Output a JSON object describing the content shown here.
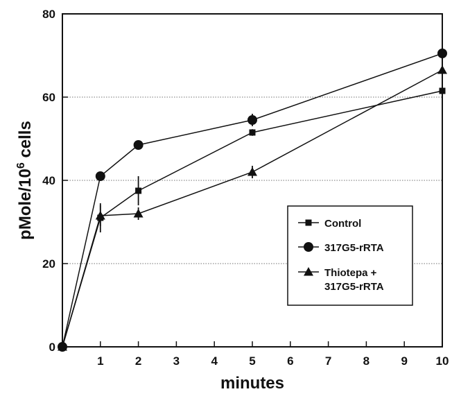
{
  "chart_data": {
    "type": "line",
    "xlabel": "minutes",
    "ylabel": "pMole/10",
    "ylabel_exponent": "6",
    "ylabel_suffix": " cells",
    "xlim": [
      0,
      10
    ],
    "ylim": [
      0,
      80
    ],
    "xticks": [
      1,
      2,
      3,
      4,
      5,
      6,
      7,
      8,
      9,
      10
    ],
    "yticks": [
      0,
      20,
      40,
      60,
      80
    ],
    "grid": {
      "horizontal": [
        20,
        40,
        60
      ],
      "style": "dotted"
    },
    "legend_position": "lower-right",
    "series": [
      {
        "name": "Control",
        "marker": "square",
        "x": [
          0,
          1,
          2,
          5,
          10
        ],
        "y": [
          0,
          31,
          37.5,
          51.5,
          61.5
        ],
        "err": [
          0,
          3.5,
          3.5,
          0.8,
          0.8
        ]
      },
      {
        "name": "317G5-rRTA",
        "marker": "circle",
        "x": [
          0,
          1,
          2,
          5,
          10
        ],
        "y": [
          0,
          41,
          48.5,
          54.5,
          70.5
        ],
        "err": [
          0,
          0.8,
          0.8,
          1.5,
          1.2
        ]
      },
      {
        "name": "Thiotepa + 317G5-rRTA",
        "legend_lines": [
          "Thiotepa +",
          "317G5-rRTA"
        ],
        "marker": "triangle",
        "x": [
          0,
          1,
          2,
          5,
          10
        ],
        "y": [
          0,
          31.5,
          32,
          42,
          66.5
        ],
        "err": [
          0,
          2.5,
          1.5,
          1.5,
          1.5
        ]
      }
    ]
  }
}
